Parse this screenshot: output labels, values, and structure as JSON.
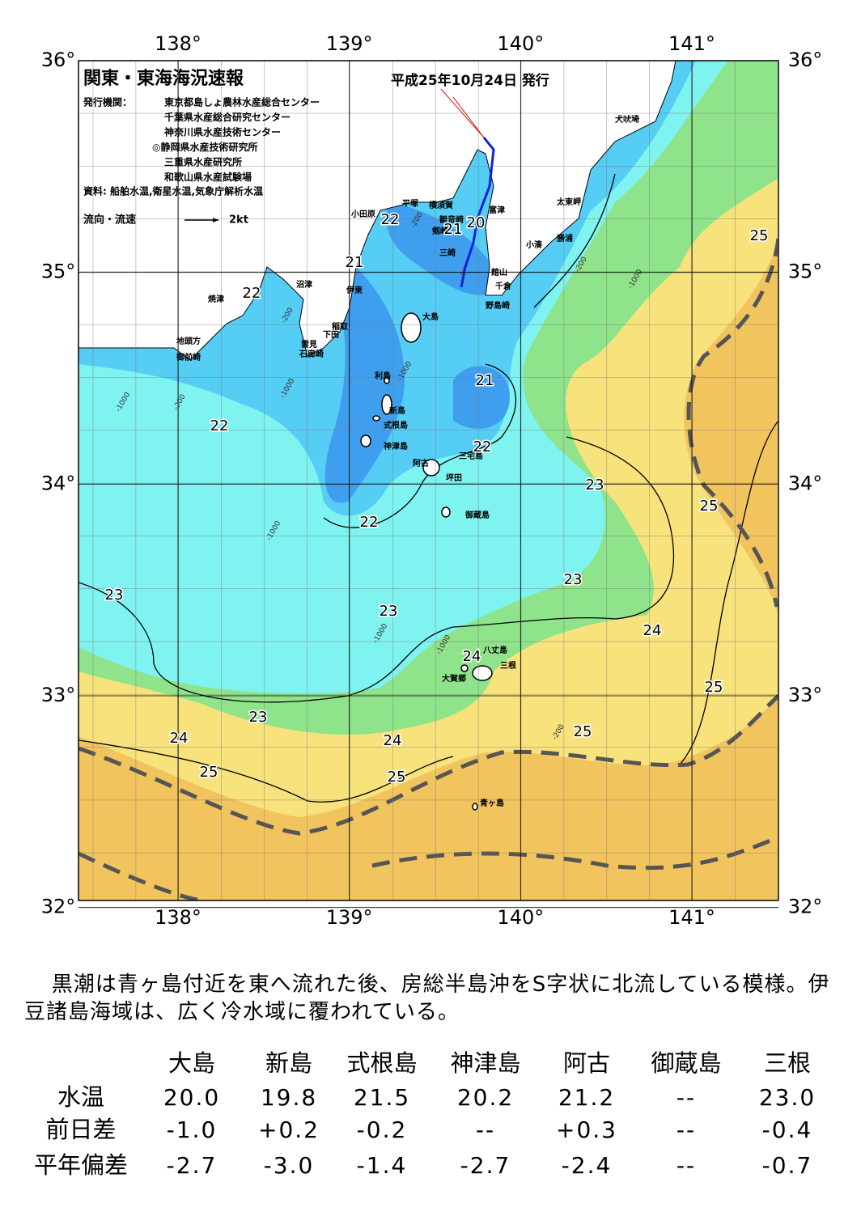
{
  "map": {
    "title": "関東・東海海況速報",
    "issue_date": "平成25年10月24日 発行",
    "issuer_label": "発行機関：",
    "issuers": [
      "東京都島しょ農林水産総合センター",
      "千葉県水産総合研究センター",
      "神奈川県水産技術センター",
      "◎静岡県水産技術研究所",
      "三重県水産研究所",
      "和歌山県水産試験場"
    ],
    "source": "資料: 船舶水温,衛星水温,気象庁解析水温",
    "legend": {
      "label": "流向・流速",
      "speed": "2kt"
    },
    "lon_ticks": [
      {
        "value": 138,
        "label": "138°"
      },
      {
        "value": 139,
        "label": "139°"
      },
      {
        "value": 140,
        "label": "140°"
      },
      {
        "value": 141,
        "label": "141°"
      }
    ],
    "lat_ticks": [
      {
        "value": 36,
        "label": "36°"
      },
      {
        "value": 35,
        "label": "35°"
      },
      {
        "value": 34,
        "label": "34°"
      },
      {
        "value": 33,
        "label": "33°"
      },
      {
        "value": 32,
        "label": "32°"
      }
    ],
    "places": [
      "犬吠埼",
      "太東岬",
      "勝浦",
      "小湊",
      "館山",
      "千倉",
      "野島崎",
      "富津",
      "横須賀",
      "観音崎",
      "剱崎",
      "三崎",
      "平塚",
      "小田原",
      "沼津",
      "伊東",
      "焼津",
      "稲取",
      "下田",
      "雲見",
      "石廊崎",
      "地頭方",
      "御前崎",
      "大島",
      "利島",
      "新島",
      "式根島",
      "神津島",
      "阿古",
      "三宅島",
      "坪田",
      "御蔵島",
      "八丈島",
      "三根",
      "大賀郷",
      "青ヶ島"
    ],
    "contour_labels": [
      25,
      22,
      21,
      20,
      21,
      22,
      21,
      22,
      22,
      23,
      25,
      22,
      23,
      23,
      23,
      24,
      24,
      25,
      23,
      24,
      24,
      25,
      25,
      25
    ],
    "depth_labels": [
      -200,
      -200,
      -1000,
      -200,
      -1000,
      -1000,
      -200,
      -1000,
      -1000,
      -1000,
      -1000,
      -200
    ]
  },
  "text": "黒潮は青ヶ島付近を東へ流れた後、房総半島沖をS字状に北流している模様。伊豆諸島海域は、広く冷水域に覆われている。",
  "table": {
    "header": [
      "大島",
      "新島",
      "式根島",
      "神津島",
      "阿古",
      "御蔵島",
      "三根"
    ],
    "rows": [
      {
        "label": "水温",
        "cells": [
          "20.0",
          "19.8",
          "21.5",
          "20.2",
          "21.2",
          "--",
          "23.0"
        ]
      },
      {
        "label": "前日差",
        "cells": [
          "-1.0",
          "+0.2",
          "-0.2",
          "--",
          "+0.3",
          "--",
          "-0.4"
        ]
      },
      {
        "label": "平年偏差",
        "cells": [
          "-2.7",
          "-3.0",
          "-1.4",
          "-2.7",
          "-2.4",
          "--",
          "-0.7"
        ]
      }
    ]
  }
}
